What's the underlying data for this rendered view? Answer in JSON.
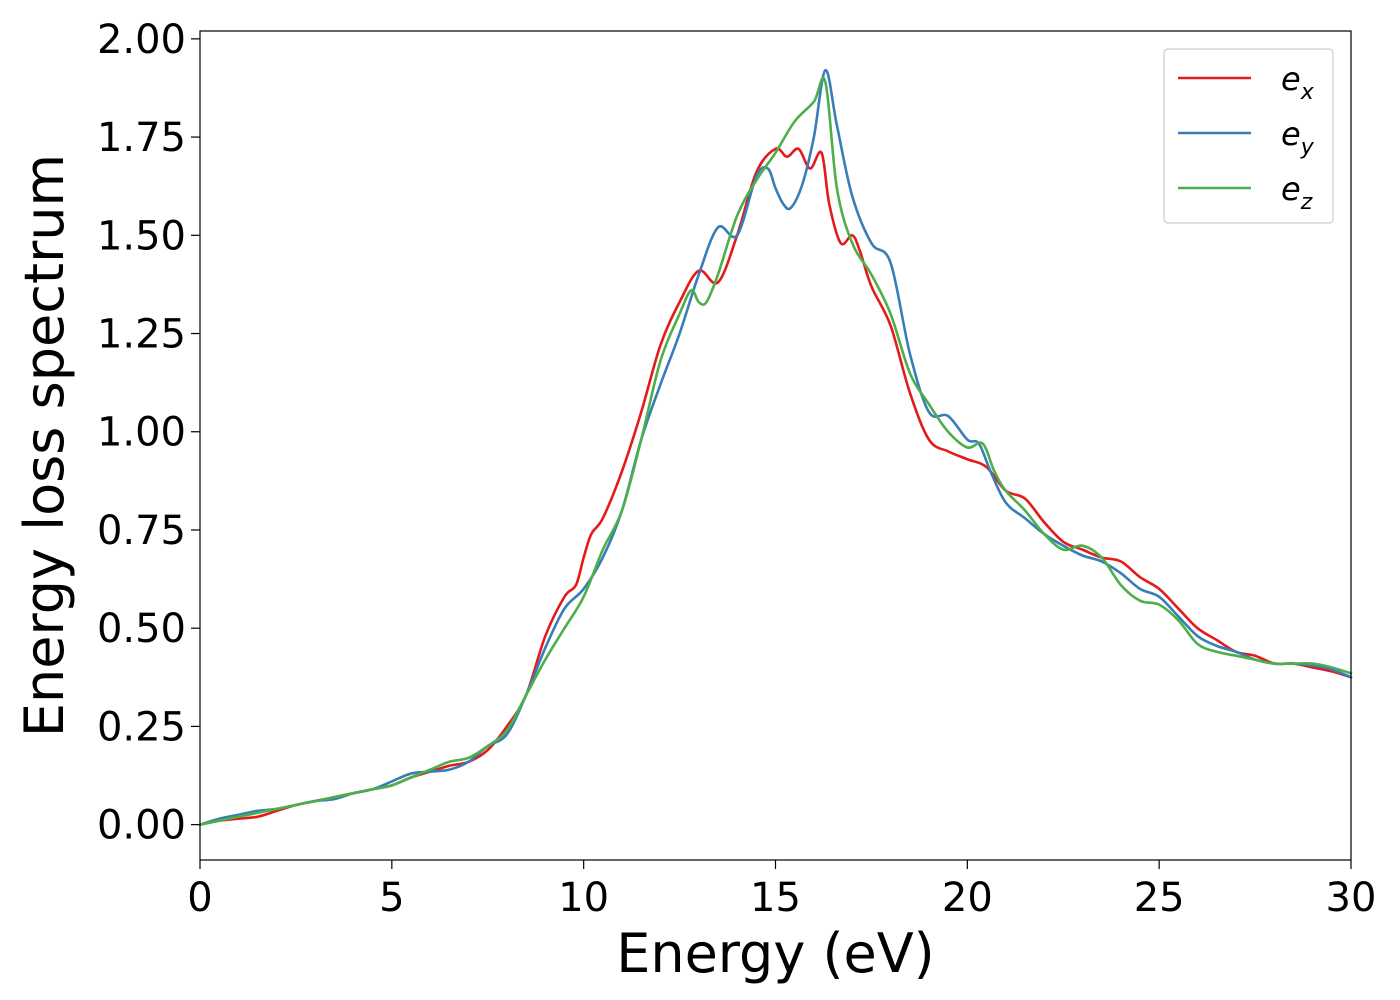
{
  "chart_data": {
    "type": "line",
    "xlabel": "Energy (eV)",
    "ylabel": "Energy loss spectrum",
    "xlim": [
      0,
      30
    ],
    "ylim": [
      -0.09,
      2.02
    ],
    "xticks": [
      0,
      5,
      10,
      15,
      20,
      25,
      30
    ],
    "xtick_labels": [
      "0",
      "5",
      "10",
      "15",
      "20",
      "25",
      "30"
    ],
    "yticks": [
      0,
      0.25,
      0.5,
      0.75,
      1.0,
      1.25,
      1.5,
      1.75,
      2.0
    ],
    "ytick_labels": [
      "0.00",
      "0.25",
      "0.50",
      "0.75",
      "1.00",
      "1.25",
      "1.50",
      "1.75",
      "2.00"
    ],
    "grid": false,
    "legend_position": "top-right",
    "series": [
      {
        "name": "e_x",
        "label_base": "e",
        "label_sub": "x",
        "color": "#e41a1c",
        "x": [
          0,
          0.5,
          1,
          1.5,
          2,
          2.5,
          3,
          3.5,
          4,
          4.5,
          5,
          5.5,
          6,
          6.5,
          7,
          7.5,
          8,
          8.5,
          9,
          9.5,
          9.8,
          10,
          10.2,
          10.5,
          11,
          11.5,
          12,
          12.5,
          13,
          13.5,
          14,
          14.5,
          15,
          15.3,
          15.6,
          15.9,
          16.2,
          16.4,
          16.7,
          17,
          17.2,
          17.5,
          18,
          18.5,
          19,
          19.5,
          20,
          20.5,
          21,
          21.5,
          22,
          22.5,
          23,
          23.5,
          24,
          24.5,
          25,
          25.5,
          26,
          26.5,
          27,
          27.5,
          28,
          28.5,
          29,
          29.5,
          30
        ],
        "y": [
          0,
          0.01,
          0.015,
          0.02,
          0.035,
          0.05,
          0.06,
          0.07,
          0.08,
          0.09,
          0.1,
          0.12,
          0.135,
          0.15,
          0.16,
          0.19,
          0.25,
          0.33,
          0.48,
          0.58,
          0.61,
          0.68,
          0.74,
          0.78,
          0.9,
          1.05,
          1.22,
          1.33,
          1.41,
          1.38,
          1.5,
          1.66,
          1.72,
          1.7,
          1.72,
          1.67,
          1.71,
          1.58,
          1.48,
          1.5,
          1.46,
          1.37,
          1.27,
          1.1,
          0.98,
          0.95,
          0.93,
          0.91,
          0.85,
          0.83,
          0.77,
          0.72,
          0.7,
          0.68,
          0.67,
          0.63,
          0.6,
          0.55,
          0.5,
          0.47,
          0.44,
          0.43,
          0.41,
          0.41,
          0.4,
          0.39,
          0.375
        ]
      },
      {
        "name": "e_y",
        "label_base": "e",
        "label_sub": "y",
        "color": "#377eb8",
        "x": [
          0,
          0.5,
          1,
          1.5,
          2,
          2.5,
          3,
          3.5,
          4,
          4.5,
          5,
          5.5,
          6,
          6.5,
          7,
          7.5,
          8,
          8.5,
          9,
          9.5,
          10,
          10.5,
          11,
          11.5,
          12,
          12.5,
          13,
          13.5,
          14,
          14.5,
          14.8,
          15,
          15.2,
          15.4,
          15.7,
          16,
          16.3,
          16.6,
          17,
          17.5,
          18,
          18.5,
          19,
          19.5,
          20,
          20.3,
          20.6,
          21,
          21.5,
          22,
          22.5,
          23,
          23.5,
          24,
          24.5,
          25,
          25.5,
          26,
          26.5,
          27,
          27.5,
          28,
          28.5,
          29,
          29.5,
          30
        ],
        "y": [
          0,
          0.015,
          0.025,
          0.035,
          0.04,
          0.05,
          0.06,
          0.065,
          0.08,
          0.09,
          0.11,
          0.13,
          0.135,
          0.14,
          0.16,
          0.2,
          0.23,
          0.33,
          0.45,
          0.55,
          0.6,
          0.68,
          0.8,
          0.98,
          1.12,
          1.25,
          1.4,
          1.52,
          1.5,
          1.65,
          1.67,
          1.62,
          1.58,
          1.57,
          1.63,
          1.75,
          1.92,
          1.78,
          1.6,
          1.48,
          1.43,
          1.2,
          1.05,
          1.04,
          0.98,
          0.97,
          0.9,
          0.82,
          0.78,
          0.74,
          0.71,
          0.685,
          0.67,
          0.64,
          0.6,
          0.58,
          0.53,
          0.48,
          0.455,
          0.44,
          0.42,
          0.41,
          0.41,
          0.405,
          0.395,
          0.375
        ]
      },
      {
        "name": "e_z",
        "label_base": "e",
        "label_sub": "z",
        "color": "#4daf4a",
        "x": [
          0,
          0.5,
          1,
          1.5,
          2,
          2.5,
          3,
          3.5,
          4,
          4.5,
          5,
          5.5,
          6,
          6.5,
          7,
          7.5,
          8,
          8.5,
          9,
          9.5,
          10,
          10.5,
          11,
          11.5,
          12,
          12.5,
          12.8,
          13,
          13.2,
          13.5,
          14,
          14.5,
          15,
          15.5,
          16,
          16.3,
          16.6,
          17,
          17.5,
          18,
          18.5,
          19,
          19.5,
          20,
          20.4,
          20.7,
          21,
          21.5,
          22,
          22.5,
          23,
          23.5,
          24,
          24.5,
          25,
          25.5,
          26,
          26.5,
          27,
          27.5,
          28,
          28.5,
          29,
          29.5,
          30
        ],
        "y": [
          0,
          0.01,
          0.02,
          0.03,
          0.04,
          0.05,
          0.06,
          0.07,
          0.08,
          0.09,
          0.1,
          0.12,
          0.14,
          0.16,
          0.17,
          0.2,
          0.24,
          0.33,
          0.42,
          0.5,
          0.58,
          0.7,
          0.8,
          0.98,
          1.18,
          1.3,
          1.36,
          1.33,
          1.33,
          1.4,
          1.55,
          1.64,
          1.71,
          1.79,
          1.84,
          1.89,
          1.62,
          1.48,
          1.4,
          1.3,
          1.15,
          1.07,
          1.0,
          0.96,
          0.97,
          0.9,
          0.85,
          0.8,
          0.74,
          0.7,
          0.71,
          0.68,
          0.61,
          0.57,
          0.56,
          0.52,
          0.46,
          0.44,
          0.43,
          0.42,
          0.41,
          0.41,
          0.41,
          0.4,
          0.385
        ]
      }
    ]
  }
}
